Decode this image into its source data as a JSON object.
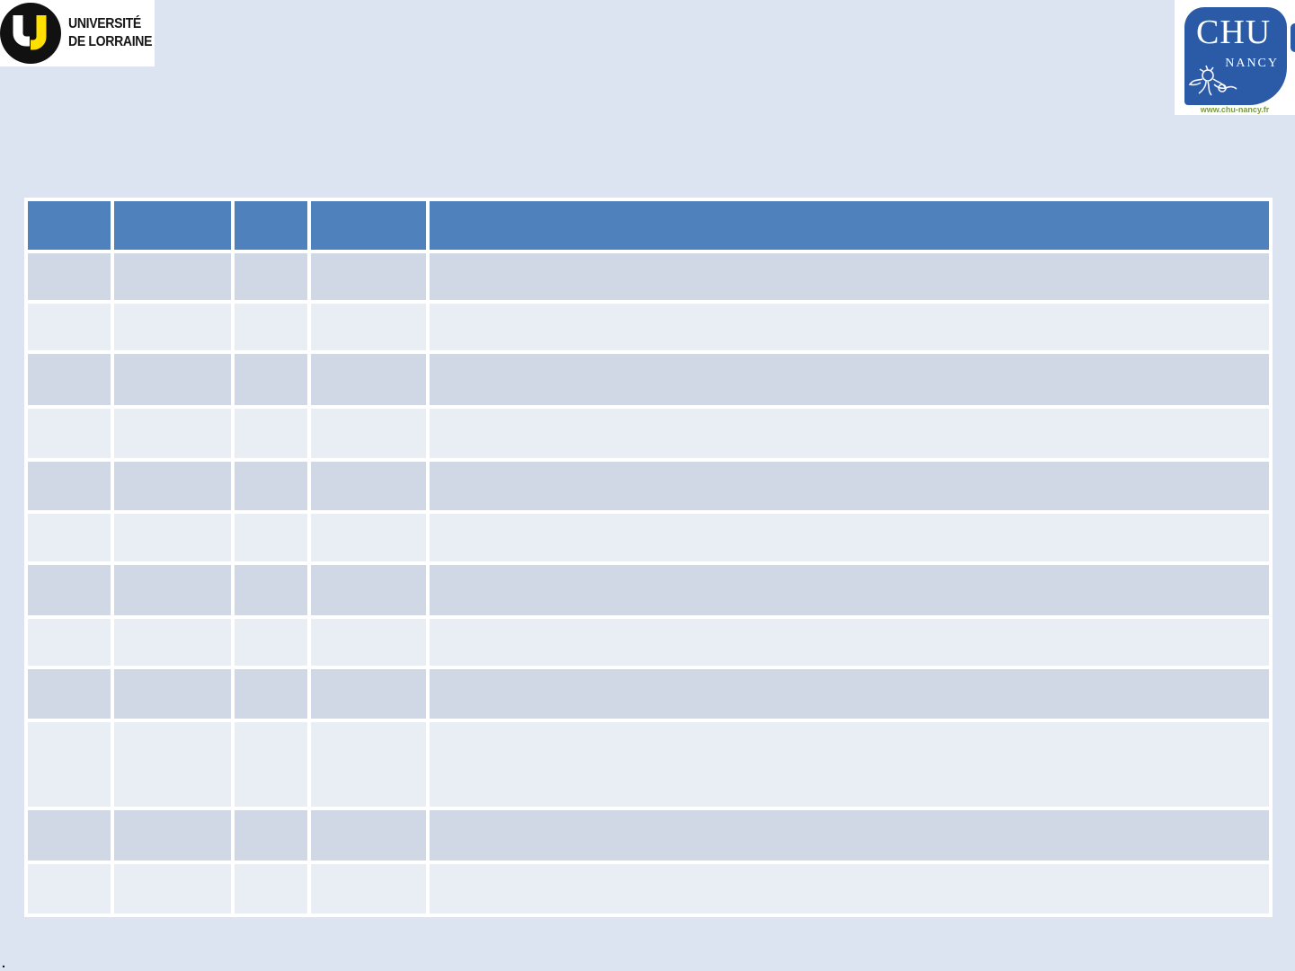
{
  "colors": {
    "page_bg": "#DBE4F0",
    "logo_backing": "#FFFFFF",
    "ink": "#161616",
    "ul_yellow": "#FFE000",
    "chu_blue": "#2B5AA6",
    "url_green": "#7C9A3E",
    "header": "#4F81BD",
    "band_dark": "#D0D7E5",
    "band_light": "#E9EDF4",
    "divider": "#FFFFFF"
  },
  "logos": {
    "universite_lorraine": {
      "monogram": "UL",
      "line1": "UNIVERSITÉ",
      "line2": "DE LORRAINE"
    },
    "chu_nancy": {
      "acronym": "CHU",
      "city": "NANCY",
      "url": "www.chu-nancy.fr"
    }
  },
  "table": {
    "columns": [
      {
        "label": ""
      },
      {
        "label": ""
      },
      {
        "label": ""
      },
      {
        "label": ""
      },
      {
        "label": ""
      }
    ],
    "rows": [
      [
        "",
        "",
        "",
        "",
        ""
      ],
      [
        "",
        "",
        "",
        "",
        ""
      ],
      [
        "",
        "",
        "",
        "",
        ""
      ],
      [
        "",
        "",
        "",
        "",
        ""
      ],
      [
        "",
        "",
        "",
        "",
        ""
      ],
      [
        "",
        "",
        "",
        "",
        ""
      ],
      [
        "",
        "",
        "",
        "",
        ""
      ],
      [
        "",
        "",
        "",
        "",
        ""
      ],
      [
        "",
        "",
        "",
        "",
        ""
      ],
      [
        "",
        "",
        "",
        "",
        ""
      ],
      [
        "",
        "",
        "",
        "",
        ""
      ],
      [
        "",
        "",
        "",
        "",
        ""
      ]
    ]
  },
  "footer": {
    "mark": "."
  }
}
